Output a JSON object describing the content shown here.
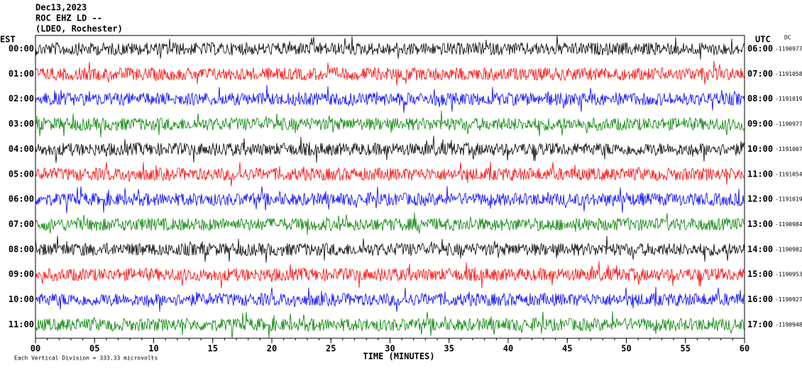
{
  "header": {
    "lines": [
      "Dec13,2023",
      "ROC EHZ LD --",
      "(LDEO, Rochester)"
    ]
  },
  "left_label": "EST",
  "right_label": "UTC",
  "dc_label": "DC",
  "rows": [
    {
      "est": "00:00",
      "utc": "06:00",
      "dc": "-1190977",
      "color": "#000000"
    },
    {
      "est": "01:00",
      "utc": "07:00",
      "dc": "-1191058",
      "color": "#ff0000"
    },
    {
      "est": "02:00",
      "utc": "08:00",
      "dc": "-1191019",
      "color": "#0000ff"
    },
    {
      "est": "03:00",
      "utc": "09:00",
      "dc": "-1190977",
      "color": "#008000"
    },
    {
      "est": "04:00",
      "utc": "10:00",
      "dc": "-1191007",
      "color": "#000000"
    },
    {
      "est": "05:00",
      "utc": "11:00",
      "dc": "-1191054",
      "color": "#ff0000"
    },
    {
      "est": "06:00",
      "utc": "12:00",
      "dc": "-1191019",
      "color": "#0000ff"
    },
    {
      "est": "07:00",
      "utc": "13:00",
      "dc": "-1190984",
      "color": "#008000"
    },
    {
      "est": "08:00",
      "utc": "14:00",
      "dc": "-1190982",
      "color": "#000000"
    },
    {
      "est": "09:00",
      "utc": "15:00",
      "dc": "-1190953",
      "color": "#ff0000"
    },
    {
      "est": "10:00",
      "utc": "16:00",
      "dc": "-1190927",
      "color": "#0000ff"
    },
    {
      "est": "11:00",
      "utc": "17:00",
      "dc": "-1190948",
      "color": "#008000"
    }
  ],
  "x_ticks": [
    "00",
    "05",
    "10",
    "15",
    "20",
    "25",
    "30",
    "35",
    "40",
    "45",
    "50",
    "55",
    "60"
  ],
  "x_label": "TIME (MINUTES)",
  "footnote": "Each Vertical Division =  333.33 microvolts"
}
